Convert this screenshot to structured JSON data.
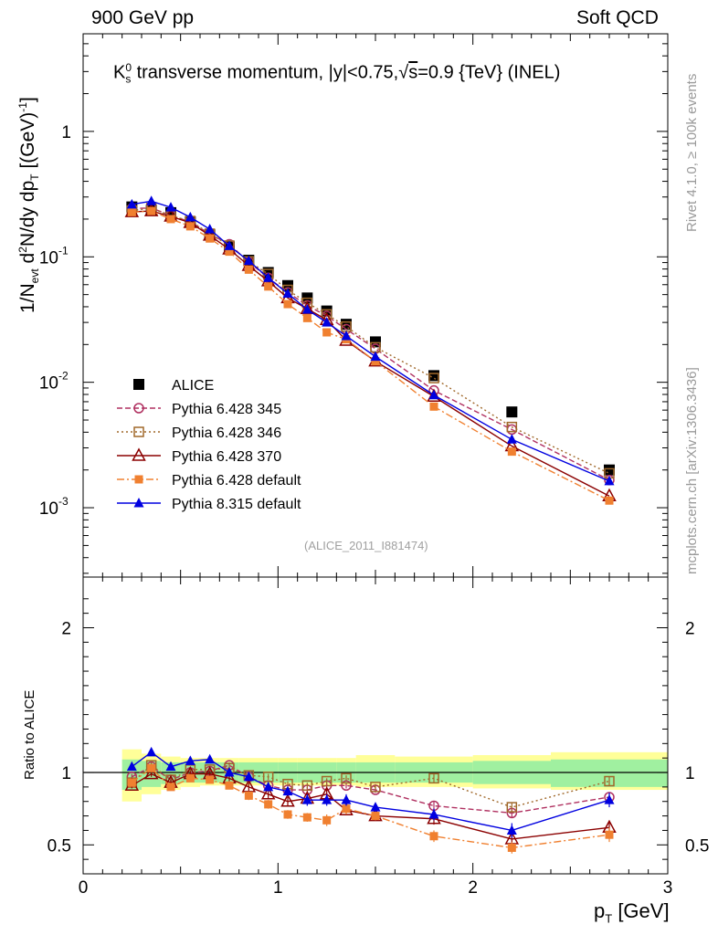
{
  "header": {
    "left": "900 GeV pp",
    "right": "Soft QCD"
  },
  "side_text": {
    "rivet": "Rivet 4.1.0, ≥ 100k events",
    "mcplots": "mcplots.cern.ch [arXiv:1306.3436]"
  },
  "plot_title": {
    "part1": "K",
    "sub": "s",
    "sup": "0",
    "part2": " transverse momentum, |y|<0.75,",
    "sqrt": "√",
    "s": "s",
    "part3": "=0.9 {TeV} (INEL)"
  },
  "y_label": {
    "p1": "1/N",
    "s1": "evt",
    "p2": "  d",
    "s2": "2",
    "p3": "N/dy dp",
    "s3": "T",
    "p4": " [(GeV)",
    "s4": "-1",
    "p5": "]"
  },
  "x_label": {
    "p": "p",
    "sub": "T",
    "rest": " [GeV]"
  },
  "ratio_label": "Ratio to ALICE",
  "watermark": "(ALICE_2011_I881474)",
  "chart_data": [
    {
      "type": "scatter",
      "title": "K0s transverse momentum, |y|<0.75, sqrt(s)=0.9 {TeV} (INEL)",
      "xlabel": "pT [GeV]",
      "ylabel": "1/Nevt d2N/dy dpT [(GeV)-1]",
      "yscale": "log",
      "xlim": [
        0,
        3
      ],
      "ylim": [
        0.00028,
        6
      ],
      "ytick_labels": [
        "10^-3",
        "10^-2",
        "10^-1",
        "1"
      ],
      "xtick_labels": [
        "0",
        "1",
        "2",
        "3"
      ],
      "x": [
        0.25,
        0.35,
        0.45,
        0.55,
        0.65,
        0.75,
        0.85,
        0.95,
        1.05,
        1.15,
        1.25,
        1.35,
        1.5,
        1.8,
        2.2,
        2.7
      ],
      "series": [
        {
          "name": "ALICE",
          "color": "#000000",
          "marker": "square-filled",
          "line": "none",
          "values": [
            0.25,
            0.235,
            0.225,
            0.19,
            0.15,
            0.12,
            0.094,
            0.075,
            0.059,
            0.047,
            0.037,
            0.029,
            0.021,
            0.0113,
            0.0058,
            0.002
          ]
        },
        {
          "name": "Pythia 6.428 345",
          "color": "#b03060",
          "marker": "circle-open",
          "line": "dashed",
          "values": [
            0.243,
            0.245,
            0.214,
            0.19,
            0.152,
            0.126,
            0.091,
            0.068,
            0.052,
            0.041,
            0.0338,
            0.0265,
            0.0185,
            0.0086,
            0.0042,
            0.00166
          ]
        },
        {
          "name": "Pythia 6.428 346",
          "color": "#a0682a",
          "marker": "square-open",
          "line": "dotted",
          "values": [
            0.233,
            0.245,
            0.212,
            0.193,
            0.153,
            0.123,
            0.092,
            0.073,
            0.0545,
            0.043,
            0.0348,
            0.0278,
            0.019,
            0.0108,
            0.0044,
            0.00188
          ]
        },
        {
          "name": "Pythia 6.428 370",
          "color": "#8b0000",
          "marker": "triangle-open",
          "line": "solid",
          "values": [
            0.228,
            0.232,
            0.21,
            0.187,
            0.148,
            0.115,
            0.085,
            0.064,
            0.047,
            0.0385,
            0.0315,
            0.0215,
            0.0147,
            0.0077,
            0.0031,
            0.00124
          ]
        },
        {
          "name": "Pythia 6.428 default",
          "color": "#f08030",
          "marker": "square-filled-small",
          "line": "dashdot",
          "values": [
            0.227,
            0.232,
            0.2,
            0.175,
            0.14,
            0.11,
            0.079,
            0.058,
            0.042,
            0.0325,
            0.025,
            0.022,
            0.0147,
            0.0064,
            0.0028,
            0.00114
          ]
        },
        {
          "name": "Pythia 8.315 default",
          "color": "#0000e0",
          "marker": "triangle-filled",
          "line": "solid",
          "values": [
            0.262,
            0.278,
            0.248,
            0.207,
            0.166,
            0.122,
            0.093,
            0.068,
            0.051,
            0.038,
            0.03,
            0.0234,
            0.016,
            0.0079,
            0.0035,
            0.00163
          ]
        }
      ]
    },
    {
      "type": "scatter",
      "title": "Ratio to ALICE",
      "xlabel": "pT [GeV]",
      "ylabel": "Ratio to ALICE",
      "xlim": [
        0,
        3
      ],
      "ylim": [
        0.3,
        2.35
      ],
      "ytick_labels": [
        "0.5",
        "1",
        "2"
      ],
      "bands": {
        "edges": [
          0.2,
          0.3,
          0.4,
          0.5,
          0.6,
          0.7,
          0.8,
          0.9,
          1.0,
          1.1,
          1.2,
          1.3,
          1.4,
          1.6,
          2.0,
          2.4,
          3.0
        ],
        "stat_sys_inner": [
          [
            0.88,
            1.09
          ],
          [
            0.9,
            1.08
          ],
          [
            0.92,
            1.07
          ],
          [
            0.93,
            1.07
          ],
          [
            0.93,
            1.07
          ],
          [
            0.93,
            1.07
          ],
          [
            0.93,
            1.07
          ],
          [
            0.93,
            1.07
          ],
          [
            0.93,
            1.07
          ],
          [
            0.93,
            1.07
          ],
          [
            0.93,
            1.07
          ],
          [
            0.93,
            1.07
          ],
          [
            0.93,
            1.07
          ],
          [
            0.93,
            1.07
          ],
          [
            0.92,
            1.08
          ],
          [
            0.9,
            1.09
          ]
        ],
        "outer": [
          [
            0.8,
            1.16
          ],
          [
            0.85,
            1.13
          ],
          [
            0.88,
            1.11
          ],
          [
            0.9,
            1.1
          ],
          [
            0.91,
            1.1
          ],
          [
            0.91,
            1.1
          ],
          [
            0.91,
            1.1
          ],
          [
            0.91,
            1.1
          ],
          [
            0.91,
            1.1
          ],
          [
            0.91,
            1.1
          ],
          [
            0.91,
            1.1
          ],
          [
            0.91,
            1.1
          ],
          [
            0.9,
            1.12
          ],
          [
            0.9,
            1.11
          ],
          [
            0.89,
            1.12
          ],
          [
            0.88,
            1.14
          ]
        ],
        "inner_color": "#a0f0a0",
        "outer_color": "#ffff99"
      },
      "series": [
        {
          "name": "Pythia 6.428 345",
          "values": [
            0.97,
            1.04,
            0.95,
            1.0,
            1.01,
            1.05,
            0.97,
            0.91,
            0.88,
            0.88,
            0.91,
            0.91,
            0.88,
            0.77,
            0.72,
            0.83
          ],
          "err": [
            0.02,
            0.02,
            0.02,
            0.02,
            0.02,
            0.02,
            0.02,
            0.02,
            0.02,
            0.02,
            0.02,
            0.02,
            0.02,
            0.03,
            0.03,
            0.03
          ]
        },
        {
          "name": "Pythia 6.428 346",
          "values": [
            0.93,
            1.05,
            0.95,
            1.02,
            1.02,
            1.03,
            0.98,
            0.97,
            0.92,
            0.91,
            0.94,
            0.96,
            0.9,
            0.96,
            0.76,
            0.94
          ],
          "err": [
            0.02,
            0.02,
            0.02,
            0.02,
            0.02,
            0.02,
            0.02,
            0.02,
            0.02,
            0.02,
            0.02,
            0.02,
            0.02,
            0.03,
            0.03,
            0.03
          ]
        },
        {
          "name": "Pythia 6.428 370",
          "values": [
            0.91,
            0.99,
            0.93,
            0.99,
            0.99,
            0.96,
            0.9,
            0.85,
            0.8,
            0.82,
            0.85,
            0.74,
            0.7,
            0.68,
            0.54,
            0.62
          ],
          "err": [
            0.02,
            0.02,
            0.02,
            0.02,
            0.02,
            0.02,
            0.03,
            0.03,
            0.03,
            0.03,
            0.03,
            0.03,
            0.03,
            0.04,
            0.04,
            0.04
          ]
        },
        {
          "name": "Pythia 6.428 default",
          "values": [
            0.93,
            1.03,
            0.9,
            0.96,
            0.95,
            0.91,
            0.84,
            0.78,
            0.71,
            0.69,
            0.67,
            0.75,
            0.7,
            0.56,
            0.48,
            0.57
          ],
          "err": [
            0.02,
            0.02,
            0.02,
            0.02,
            0.02,
            0.02,
            0.03,
            0.03,
            0.03,
            0.03,
            0.04,
            0.04,
            0.03,
            0.04,
            0.04,
            0.05
          ]
        },
        {
          "name": "Pythia 8.315 default",
          "values": [
            1.04,
            1.14,
            1.04,
            1.08,
            1.09,
            1.0,
            0.97,
            0.9,
            0.87,
            0.81,
            0.81,
            0.81,
            0.76,
            0.71,
            0.6,
            0.81
          ],
          "err": [
            0.02,
            0.02,
            0.02,
            0.02,
            0.02,
            0.02,
            0.03,
            0.03,
            0.03,
            0.04,
            0.04,
            0.04,
            0.03,
            0.04,
            0.05,
            0.05
          ]
        }
      ]
    }
  ]
}
